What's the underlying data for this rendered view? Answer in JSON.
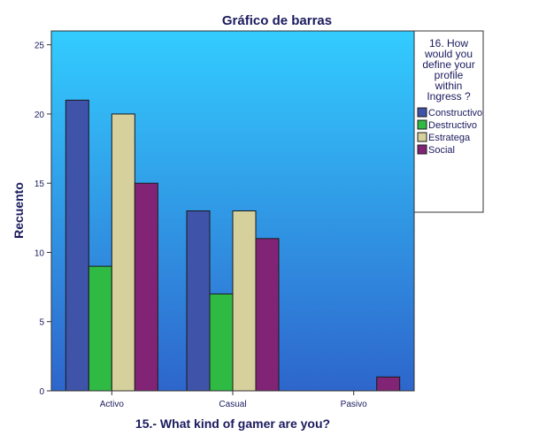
{
  "chart_data": {
    "type": "bar",
    "title": "Gráfico de barras",
    "xlabel": "15.- What kind of gamer are you?",
    "ylabel": "Recuento",
    "categories": [
      "Activo",
      "Casual",
      "Pasivo"
    ],
    "ylim": [
      0,
      26
    ],
    "yticks": [
      0,
      5,
      10,
      15,
      20,
      25
    ],
    "legend_title": "16. How would you define your profile within Ingress ?",
    "legend_position": "right",
    "background": {
      "gradient_top": "#33ccff",
      "gradient_bottom": "#2e66cc"
    },
    "series": [
      {
        "name": "Constructivo",
        "color": "#3f53a8",
        "values": [
          21,
          13,
          0
        ]
      },
      {
        "name": "Destructivo",
        "color": "#2fba44",
        "values": [
          9,
          7,
          0
        ]
      },
      {
        "name": "Estratega",
        "color": "#d6d09c",
        "values": [
          20,
          13,
          0
        ]
      },
      {
        "name": "Social",
        "color": "#822475",
        "values": [
          15,
          11,
          1
        ]
      }
    ]
  }
}
